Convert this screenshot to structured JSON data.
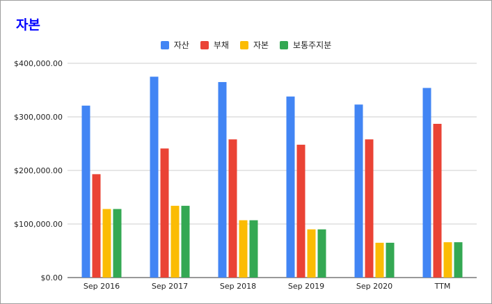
{
  "chart_data": {
    "type": "bar",
    "title": "자본",
    "categories": [
      "Sep 2016",
      "Sep 2017",
      "Sep 2018",
      "Sep 2019",
      "Sep 2020",
      "TTM"
    ],
    "series": [
      {
        "name": "자산",
        "color": "#4285f4",
        "values": [
          321000,
          375000,
          365000,
          338000,
          323000,
          354000
        ]
      },
      {
        "name": "부채",
        "color": "#ea4335",
        "values": [
          193000,
          241000,
          258000,
          248000,
          258000,
          287000
        ]
      },
      {
        "name": "자본",
        "color": "#fbbc04",
        "values": [
          128000,
          134000,
          107000,
          90000,
          65000,
          66000
        ]
      },
      {
        "name": "보통주지분",
        "color": "#34a853",
        "values": [
          128000,
          134000,
          107000,
          90000,
          65000,
          66000
        ]
      }
    ],
    "yticks": [
      "$0.00",
      "$100,000.00",
      "$200,000.00",
      "$300,000.00",
      "$400,000.00"
    ],
    "ylim": [
      0,
      400000
    ],
    "grid": true,
    "legend_position": "top-center"
  }
}
